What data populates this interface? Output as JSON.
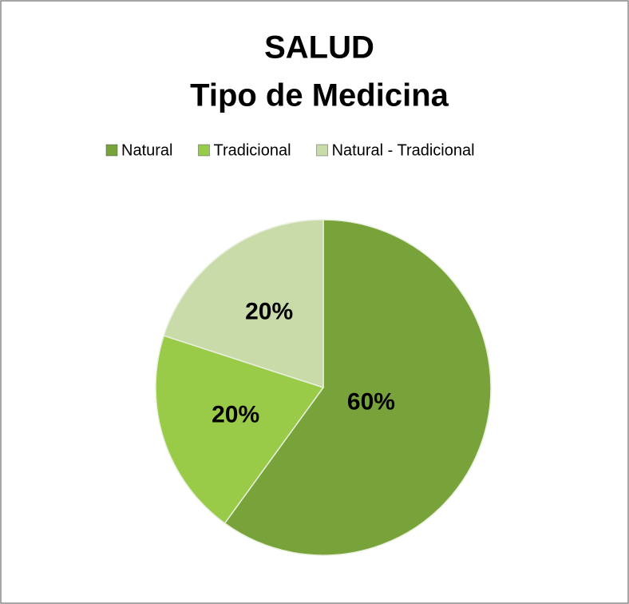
{
  "chart_data": {
    "type": "pie",
    "title": "SALUD",
    "subtitle": "Tipo de Medicina",
    "categories": [
      "Natural",
      "Tradicional",
      "Natural - Tradicional"
    ],
    "values": [
      60,
      20,
      20
    ],
    "value_labels": [
      "60%",
      "20%",
      "20%"
    ],
    "colors": [
      "#77a33a",
      "#9acb48",
      "#c8dba8"
    ],
    "legend": "top"
  }
}
